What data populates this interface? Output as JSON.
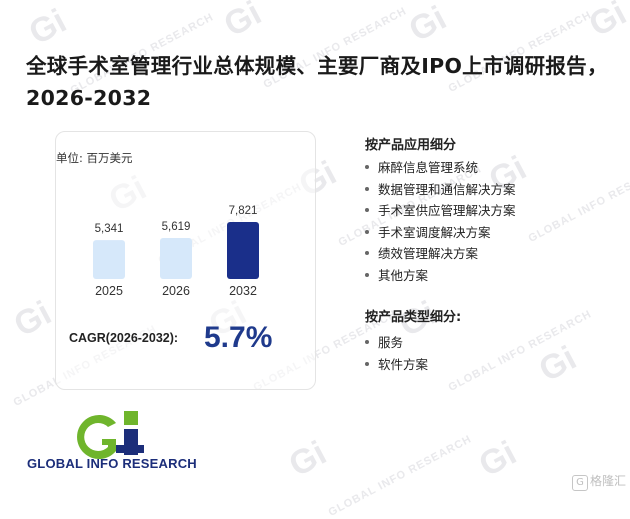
{
  "title": "全球手术室管理行业总体规模、主要厂商及IPO上市调研报告，2026-2032",
  "chart_unit_label": "单位: 百万美元",
  "chart_data": {
    "type": "bar",
    "categories": [
      "2025",
      "2026",
      "2032"
    ],
    "values": [
      5341,
      5619,
      7821
    ],
    "data_labels": [
      "5,341",
      "5,619",
      "7,821"
    ],
    "colors": [
      "#d6e8fa",
      "#d6e8fa",
      "#1a2f8a"
    ],
    "ylim": [
      0,
      8500
    ],
    "grid": false,
    "legend": "none"
  },
  "cagr": {
    "label": "CAGR(2026-2032):",
    "value": "5.7%"
  },
  "application_segment": {
    "heading": "按产品应用细分",
    "items": [
      "麻醉信息管理系统",
      "数据管理和通信解决方案",
      "手术室供应管理解决方案",
      "手术室调度解决方案",
      "绩效管理解决方案",
      "其他方案"
    ]
  },
  "type_segment": {
    "heading": "按产品类型细分:",
    "items": [
      "服务",
      "软件方案"
    ]
  },
  "brand": {
    "name": "GLOBAL INFO RESEARCH",
    "logo_text": "Gi"
  },
  "watermark_badge": "格隆汇"
}
